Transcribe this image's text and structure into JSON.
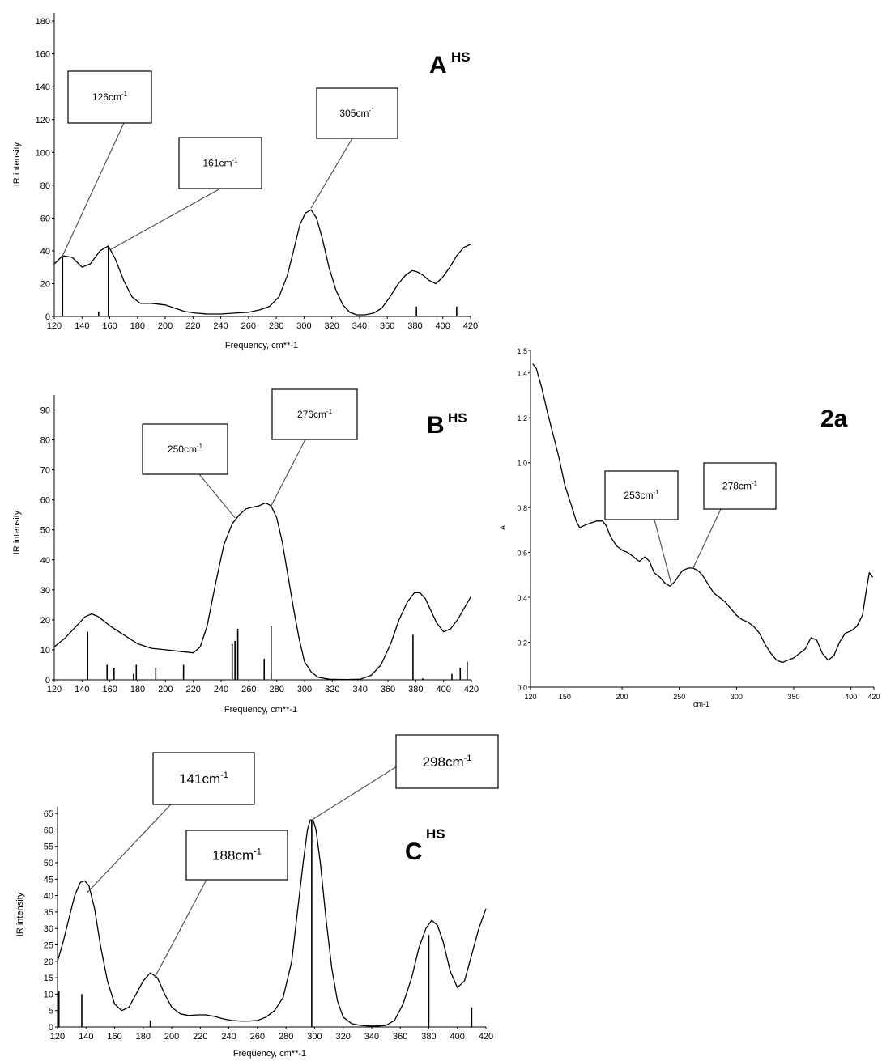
{
  "chart_data": [
    {
      "id": "A",
      "type": "line",
      "title_main": "A",
      "title_sup": "HS",
      "xlabel": "Frequency, cm**-1",
      "ylabel": "IR intensity",
      "xlim": [
        120,
        420
      ],
      "ylim": [
        0,
        185
      ],
      "xticks": [
        120,
        140,
        160,
        180,
        200,
        220,
        240,
        260,
        280,
        300,
        320,
        340,
        360,
        380,
        400,
        420
      ],
      "yticks": [
        0,
        20,
        40,
        60,
        80,
        100,
        120,
        140,
        160,
        180
      ],
      "series": [
        {
          "x": [
            120,
            126,
            133,
            140,
            146,
            153,
            159,
            164,
            170,
            176,
            182,
            190,
            200,
            207,
            214,
            222,
            230,
            240,
            250,
            260,
            268,
            275,
            282,
            288,
            293,
            297,
            301,
            305,
            309,
            313,
            318,
            323,
            328,
            333,
            338,
            344,
            350,
            356,
            362,
            368,
            373,
            378,
            382,
            386,
            390,
            395,
            400,
            405,
            410,
            415,
            420
          ],
          "y": [
            32,
            37,
            36,
            30,
            32,
            40,
            43,
            35,
            22,
            12,
            8,
            8,
            7,
            5,
            3,
            2,
            1.5,
            1.5,
            2,
            2.5,
            4,
            6,
            12,
            25,
            42,
            56,
            63,
            65,
            60,
            48,
            30,
            16,
            7,
            2.5,
            1,
            1,
            2,
            5,
            12,
            20,
            25,
            28,
            27,
            25,
            22,
            20,
            24,
            30,
            37,
            42,
            44
          ]
        }
      ],
      "sticks": [
        {
          "x": 126,
          "y": 36
        },
        {
          "x": 152,
          "y": 3
        },
        {
          "x": 159,
          "y": 43
        },
        {
          "x": 381,
          "y": 6
        },
        {
          "x": 410,
          "y": 6
        }
      ],
      "annotations": [
        {
          "text": "126cm",
          "sup": "-1",
          "x": 126,
          "y": 37
        },
        {
          "text": "161cm",
          "sup": "-1",
          "x": 161,
          "y": 41
        },
        {
          "text": "305cm",
          "sup": "-1",
          "x": 305,
          "y": 66
        }
      ]
    },
    {
      "id": "B",
      "type": "line",
      "title_main": "B",
      "title_sup": "HS",
      "xlabel": "Frequency, cm**-1",
      "ylabel": "IR intensity",
      "xlim": [
        120,
        420
      ],
      "ylim": [
        0,
        95
      ],
      "xticks": [
        120,
        140,
        160,
        180,
        200,
        220,
        240,
        260,
        280,
        300,
        320,
        340,
        360,
        380,
        400,
        420
      ],
      "yticks": [
        0,
        10,
        20,
        30,
        40,
        50,
        60,
        70,
        80,
        90
      ],
      "series": [
        {
          "x": [
            120,
            128,
            136,
            142,
            147,
            152,
            160,
            170,
            180,
            190,
            200,
            210,
            220,
            225,
            230,
            236,
            242,
            248,
            253,
            258,
            262,
            267,
            272,
            276,
            280,
            284,
            288,
            292,
            296,
            300,
            305,
            310,
            318,
            330,
            340,
            348,
            355,
            362,
            368,
            374,
            379,
            383,
            387,
            391,
            395,
            400,
            405,
            410,
            415,
            420
          ],
          "y": [
            11,
            14,
            18,
            21,
            22,
            21,
            18,
            15,
            12,
            10.5,
            10,
            9.5,
            9,
            11,
            18,
            32,
            45,
            52,
            55,
            57,
            57.5,
            58,
            59,
            58,
            54,
            46,
            35,
            24,
            14,
            6,
            2.5,
            0.8,
            0.2,
            0.1,
            0.2,
            1.5,
            5,
            12,
            20,
            26,
            29,
            29,
            27,
            23,
            19,
            16,
            17,
            20,
            24,
            28
          ]
        }
      ],
      "sticks": [
        {
          "x": 144,
          "y": 16
        },
        {
          "x": 158,
          "y": 5
        },
        {
          "x": 163,
          "y": 4
        },
        {
          "x": 177,
          "y": 2
        },
        {
          "x": 179,
          "y": 5
        },
        {
          "x": 193,
          "y": 4
        },
        {
          "x": 213,
          "y": 5
        },
        {
          "x": 248,
          "y": 12
        },
        {
          "x": 250,
          "y": 13
        },
        {
          "x": 252,
          "y": 17
        },
        {
          "x": 271,
          "y": 7
        },
        {
          "x": 276,
          "y": 18
        },
        {
          "x": 378,
          "y": 15
        },
        {
          "x": 385,
          "y": 0.5
        },
        {
          "x": 406,
          "y": 2
        },
        {
          "x": 412,
          "y": 4
        },
        {
          "x": 417,
          "y": 6
        }
      ],
      "annotations": [
        {
          "text": "250cm",
          "sup": "-1",
          "x": 250,
          "y": 54
        },
        {
          "text": "276cm",
          "sup": "-1",
          "x": 276,
          "y": 58
        }
      ]
    },
    {
      "id": "C",
      "type": "line",
      "title_main": "C",
      "title_sup": "HS",
      "xlabel": "Frequency, cm**-1",
      "ylabel": "IR intensity",
      "xlim": [
        120,
        420
      ],
      "ylim": [
        0,
        67
      ],
      "xticks": [
        120,
        140,
        160,
        180,
        200,
        220,
        240,
        260,
        280,
        300,
        320,
        340,
        360,
        380,
        400,
        420
      ],
      "yticks": [
        0,
        5,
        10,
        15,
        20,
        25,
        30,
        35,
        40,
        45,
        50,
        55,
        60,
        65
      ],
      "series": [
        {
          "x": [
            120,
            124,
            128,
            132,
            136,
            139,
            142,
            146,
            150,
            155,
            160,
            165,
            170,
            175,
            180,
            185,
            190,
            195,
            200,
            206,
            212,
            218,
            224,
            230,
            236,
            242,
            248,
            254,
            260,
            266,
            272,
            278,
            284,
            288,
            292,
            295,
            297,
            299,
            301,
            304,
            308,
            312,
            316,
            320,
            326,
            332,
            338,
            344,
            350,
            356,
            362,
            368,
            373,
            378,
            382,
            386,
            390,
            395,
            400,
            405,
            410,
            415,
            420
          ],
          "y": [
            20,
            26,
            33,
            40,
            44,
            44.5,
            43,
            36,
            25,
            14,
            7,
            5,
            6,
            10,
            14,
            16.5,
            15,
            10,
            6,
            4,
            3.5,
            3.7,
            3.7,
            3.2,
            2.5,
            2,
            1.8,
            1.8,
            2,
            3,
            5,
            9,
            20,
            35,
            50,
            60,
            63,
            63,
            60,
            50,
            33,
            18,
            8,
            3,
            1,
            0.5,
            0.3,
            0.3,
            0.5,
            2,
            7,
            15,
            24,
            30,
            32.5,
            31,
            26,
            17,
            12,
            14,
            22,
            30,
            36
          ]
        }
      ],
      "sticks": [
        {
          "x": 121,
          "y": 11
        },
        {
          "x": 137,
          "y": 10
        },
        {
          "x": 185,
          "y": 2
        },
        {
          "x": 298,
          "y": 63
        },
        {
          "x": 380,
          "y": 28
        },
        {
          "x": 410,
          "y": 6
        }
      ],
      "annotations": [
        {
          "text": "141cm",
          "sup": "-1",
          "x": 141,
          "y": 41
        },
        {
          "text": "188cm",
          "sup": "-1",
          "x": 188,
          "y": 15
        },
        {
          "text": "298cm",
          "sup": "-1",
          "x": 298,
          "y": 63
        }
      ]
    },
    {
      "id": "2a",
      "type": "line",
      "title_main": "2a",
      "title_sup": "",
      "xlabel": "cm-1",
      "ylabel": "A",
      "xlim": [
        120,
        420
      ],
      "ylim": [
        0,
        1.5
      ],
      "xticks": [
        120,
        150,
        200,
        250,
        300,
        350,
        400,
        420
      ],
      "yticks": [
        0.0,
        0.2,
        0.4,
        0.6,
        0.8,
        1.0,
        1.2,
        1.4,
        1.5
      ],
      "ytick_labels": [
        "0.0",
        "0.2",
        "0.4",
        "0.6",
        "0.8",
        "1.0",
        "1.2",
        "1.4",
        "1.5"
      ],
      "series": [
        {
          "x": [
            122,
            125,
            130,
            135,
            140,
            145,
            150,
            155,
            160,
            163,
            167,
            172,
            178,
            183,
            186,
            190,
            195,
            200,
            205,
            210,
            215,
            220,
            224,
            228,
            233,
            238,
            242,
            246,
            250,
            253,
            258,
            262,
            266,
            270,
            275,
            280,
            285,
            290,
            295,
            300,
            305,
            310,
            315,
            320,
            325,
            330,
            335,
            340,
            345,
            350,
            355,
            360,
            365,
            370,
            375,
            380,
            385,
            390,
            395,
            400,
            405,
            410,
            413,
            416,
            419
          ],
          "y": [
            1.44,
            1.42,
            1.33,
            1.22,
            1.12,
            1.02,
            0.9,
            0.82,
            0.74,
            0.71,
            0.72,
            0.73,
            0.74,
            0.74,
            0.72,
            0.67,
            0.63,
            0.61,
            0.6,
            0.58,
            0.56,
            0.58,
            0.56,
            0.51,
            0.49,
            0.46,
            0.45,
            0.47,
            0.5,
            0.52,
            0.53,
            0.53,
            0.52,
            0.5,
            0.46,
            0.42,
            0.4,
            0.38,
            0.35,
            0.32,
            0.3,
            0.29,
            0.27,
            0.24,
            0.19,
            0.15,
            0.12,
            0.11,
            0.12,
            0.13,
            0.15,
            0.17,
            0.22,
            0.21,
            0.15,
            0.12,
            0.14,
            0.2,
            0.24,
            0.25,
            0.27,
            0.32,
            0.42,
            0.51,
            0.49
          ]
        }
      ],
      "sticks": [],
      "annotations": [
        {
          "text": "253cm",
          "sup": "-1",
          "x": 243,
          "y": 0.46
        },
        {
          "text": "278cm",
          "sup": "-1",
          "x": 262,
          "y": 0.53
        }
      ]
    }
  ]
}
